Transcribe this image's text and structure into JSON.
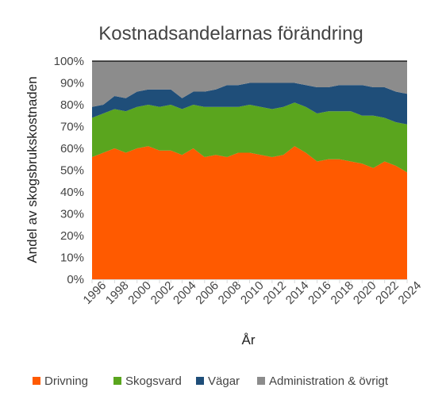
{
  "chart_data": {
    "type": "area",
    "stacked": true,
    "percent": true,
    "title": "Kostnadsandelarnas förändring",
    "xlabel": "År",
    "ylabel": "Andel av skogsbrukskostnaden",
    "y_ticks": [
      "0%",
      "10%",
      "20%",
      "30%",
      "40%",
      "50%",
      "60%",
      "70%",
      "80%",
      "90%",
      "100%"
    ],
    "x_tick_labels": [
      "1996",
      "1998",
      "2000",
      "2002",
      "2004",
      "2006",
      "2008",
      "2010",
      "2012",
      "2014",
      "2016",
      "2018",
      "2020",
      "2022",
      "2024"
    ],
    "ylim": [
      0,
      1
    ],
    "x": [
      1996,
      1997,
      1998,
      1999,
      2000,
      2001,
      2002,
      2003,
      2004,
      2005,
      2006,
      2007,
      2008,
      2009,
      2010,
      2011,
      2012,
      2013,
      2014,
      2015,
      2016,
      2017,
      2018,
      2019,
      2020,
      2021,
      2022,
      2023,
      2024
    ],
    "legend_position": "bottom",
    "series": [
      {
        "name": "Drivning",
        "color": "#FF5A00",
        "values": [
          0.56,
          0.58,
          0.6,
          0.58,
          0.6,
          0.61,
          0.59,
          0.59,
          0.57,
          0.6,
          0.56,
          0.57,
          0.56,
          0.58,
          0.58,
          0.57,
          0.56,
          0.57,
          0.61,
          0.58,
          0.54,
          0.55,
          0.55,
          0.54,
          0.53,
          0.51,
          0.54,
          0.52,
          0.49
        ]
      },
      {
        "name": "Skogsvard",
        "color": "#5AA51E",
        "values": [
          0.18,
          0.18,
          0.18,
          0.19,
          0.19,
          0.19,
          0.2,
          0.21,
          0.21,
          0.2,
          0.23,
          0.22,
          0.23,
          0.21,
          0.22,
          0.22,
          0.22,
          0.22,
          0.2,
          0.21,
          0.22,
          0.22,
          0.22,
          0.23,
          0.22,
          0.24,
          0.2,
          0.2,
          0.22
        ]
      },
      {
        "name": "Vägar",
        "color": "#1F4E79",
        "values": [
          0.05,
          0.04,
          0.06,
          0.06,
          0.07,
          0.07,
          0.08,
          0.07,
          0.05,
          0.06,
          0.07,
          0.08,
          0.1,
          0.1,
          0.1,
          0.11,
          0.12,
          0.11,
          0.09,
          0.1,
          0.12,
          0.11,
          0.12,
          0.12,
          0.14,
          0.13,
          0.14,
          0.14,
          0.14
        ]
      },
      {
        "name": "Administration & övrigt",
        "color": "#8C8C8C",
        "values": [
          0.21,
          0.2,
          0.16,
          0.17,
          0.14,
          0.13,
          0.13,
          0.13,
          0.17,
          0.14,
          0.14,
          0.13,
          0.11,
          0.11,
          0.1,
          0.1,
          0.1,
          0.1,
          0.1,
          0.11,
          0.12,
          0.12,
          0.11,
          0.11,
          0.11,
          0.12,
          0.12,
          0.14,
          0.15
        ]
      }
    ],
    "grid": false
  }
}
